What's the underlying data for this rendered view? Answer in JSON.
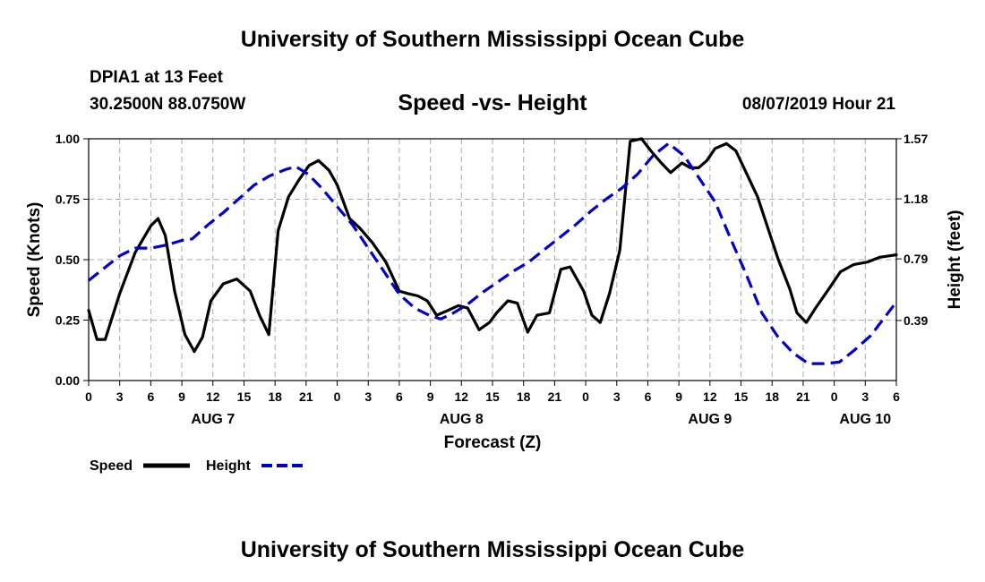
{
  "header": {
    "title": "University of Southern Mississippi Ocean Cube",
    "station": "DPIA1 at 13 Feet",
    "coords": "30.2500N 88.0750W",
    "subtitle": "Speed -vs- Height",
    "datetime": "08/07/2019 Hour 21"
  },
  "footer": {
    "title": "University of Southern Mississippi Ocean Cube"
  },
  "legend": {
    "speed_label": "Speed",
    "height_label": "Height"
  },
  "colors": {
    "speed": "#000000",
    "height": "#0000cc",
    "grid": "#aaaaaa"
  },
  "chart_data": {
    "type": "line",
    "title": "Speed -vs- Height",
    "xlabel": "Forecast (Z)",
    "ylabel_left": "Speed (Knots)",
    "ylabel_right": "Height (feet)",
    "x_unit": "hours from 00Z Aug 7",
    "xlim": [
      0,
      78
    ],
    "ylim_left": [
      0,
      1.0
    ],
    "ylim_right": [
      0,
      1.57
    ],
    "x_tick_values": [
      0,
      3,
      6,
      9,
      12,
      15,
      18,
      21,
      24,
      27,
      30,
      33,
      36,
      39,
      42,
      45,
      48,
      51,
      54,
      57,
      60,
      63,
      66,
      69,
      72,
      75,
      78
    ],
    "x_tick_labels": [
      "0",
      "3",
      "6",
      "9",
      "12",
      "15",
      "18",
      "21",
      "0",
      "3",
      "6",
      "9",
      "12",
      "15",
      "18",
      "21",
      "0",
      "3",
      "6",
      "9",
      "12",
      "15",
      "18",
      "21",
      "0",
      "3",
      "6"
    ],
    "date_labels": [
      {
        "x": 12,
        "label": "AUG 7"
      },
      {
        "x": 36,
        "label": "AUG 8"
      },
      {
        "x": 60,
        "label": "AUG 9"
      },
      {
        "x": 75,
        "label": "AUG 10"
      }
    ],
    "left_ticks": [
      {
        "value": 0.0,
        "label": "0.00"
      },
      {
        "value": 0.25,
        "label": "0.25"
      },
      {
        "value": 0.5,
        "label": "0.50"
      },
      {
        "value": 0.75,
        "label": "0.75"
      },
      {
        "value": 1.0,
        "label": "1.00"
      }
    ],
    "right_ticks": [
      {
        "value": 0.39,
        "label": "0.39"
      },
      {
        "value": 0.79,
        "label": "0.79"
      },
      {
        "value": 1.18,
        "label": "1.18"
      },
      {
        "value": 1.57,
        "label": "1.57"
      }
    ],
    "grid": true,
    "series": [
      {
        "name": "Speed",
        "axis": "left",
        "style": "solid",
        "x": [
          0,
          0.8,
          1.6,
          3,
          4.5,
          6,
          6.7,
          7.4,
          8.3,
          9.3,
          10.2,
          11,
          11.8,
          13,
          14.3,
          15.6,
          16.5,
          17.4,
          18.3,
          19.3,
          20.3,
          21.3,
          22.2,
          23.2,
          24,
          25.2,
          26.2,
          27.4,
          28.7,
          30,
          30.8,
          31.8,
          32.7,
          33.6,
          34.7,
          35.7,
          36.6,
          37.7,
          38.7,
          39.4,
          40.5,
          41.4,
          42.4,
          43.3,
          44.5,
          45.6,
          46.5,
          47.8,
          48.6,
          49.4,
          50.3,
          51.3,
          52.3,
          53.4,
          54.3,
          55.3,
          56.2,
          57.3,
          58.1,
          58.9,
          59.7,
          60.5,
          61.6,
          62.5,
          63.5,
          64.6,
          65.6,
          66.6,
          67.7,
          68.4,
          69.3,
          70.2,
          71.5,
          72.6,
          73.9,
          75.2,
          76.4,
          78
        ],
        "values": [
          0.29,
          0.17,
          0.17,
          0.36,
          0.53,
          0.64,
          0.67,
          0.6,
          0.37,
          0.19,
          0.12,
          0.18,
          0.33,
          0.4,
          0.42,
          0.37,
          0.27,
          0.19,
          0.62,
          0.76,
          0.83,
          0.89,
          0.91,
          0.87,
          0.81,
          0.67,
          0.63,
          0.57,
          0.49,
          0.37,
          0.36,
          0.35,
          0.33,
          0.27,
          0.29,
          0.31,
          0.3,
          0.21,
          0.24,
          0.28,
          0.33,
          0.32,
          0.2,
          0.27,
          0.28,
          0.46,
          0.47,
          0.37,
          0.27,
          0.24,
          0.36,
          0.54,
          0.99,
          1.0,
          0.95,
          0.9,
          0.86,
          0.9,
          0.88,
          0.88,
          0.91,
          0.96,
          0.98,
          0.95,
          0.86,
          0.76,
          0.63,
          0.5,
          0.38,
          0.28,
          0.24,
          0.3,
          0.38,
          0.45,
          0.48,
          0.49,
          0.51,
          0.52
        ]
      },
      {
        "name": "Height",
        "axis": "right",
        "style": "dashed",
        "x": [
          0,
          1.5,
          3,
          4.5,
          6,
          7.5,
          9,
          10,
          11.5,
          13,
          14.5,
          16,
          17.5,
          19,
          20,
          21.2,
          22.5,
          24,
          25.5,
          27,
          28.5,
          30,
          31.5,
          33,
          34,
          35,
          36.5,
          38,
          39.5,
          41,
          42.5,
          44,
          45.5,
          47,
          48.5,
          50,
          51.5,
          53,
          54.5,
          56,
          57.5,
          59,
          60.5,
          62,
          63.5,
          65,
          66.5,
          68,
          69.5,
          71,
          72.5,
          74,
          75.5,
          78
        ],
        "values": [
          0.65,
          0.73,
          0.81,
          0.86,
          0.86,
          0.88,
          0.91,
          0.92,
          1.01,
          1.09,
          1.18,
          1.27,
          1.33,
          1.37,
          1.39,
          1.34,
          1.25,
          1.13,
          1.01,
          0.86,
          0.71,
          0.56,
          0.47,
          0.42,
          0.4,
          0.43,
          0.49,
          0.57,
          0.64,
          0.71,
          0.77,
          0.85,
          0.93,
          1.01,
          1.1,
          1.18,
          1.25,
          1.34,
          1.46,
          1.54,
          1.46,
          1.31,
          1.16,
          0.92,
          0.69,
          0.44,
          0.29,
          0.18,
          0.11,
          0.11,
          0.12,
          0.2,
          0.29,
          0.51
        ]
      }
    ]
  }
}
